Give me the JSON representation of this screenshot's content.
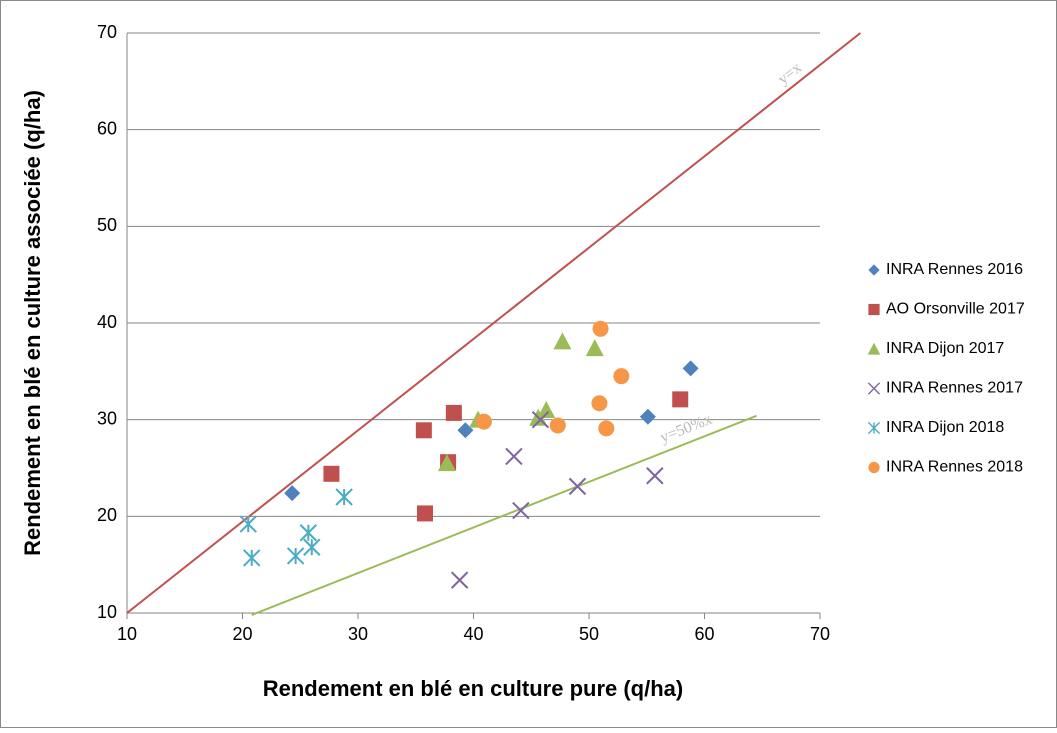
{
  "chart_data": {
    "type": "scatter",
    "xlabel": "Rendement en blé en culture pure (q/ha)",
    "ylabel": "Rendement en blé en culture associée (q/ha)",
    "xlim": [
      10,
      70
    ],
    "xticks": [
      10,
      20,
      30,
      40,
      50,
      60,
      70
    ],
    "ylim": [
      10,
      70
    ],
    "yticks": [
      10,
      20,
      30,
      40,
      50,
      60,
      70
    ],
    "grid": true,
    "legend": "right",
    "series": [
      {
        "name": "INRA Rennes 2016",
        "color": "#4f81bd",
        "marker": "diamond",
        "x": [
          24.3,
          39.3,
          55.1,
          58.8
        ],
        "values": [
          22.4,
          28.9,
          30.3,
          35.3
        ]
      },
      {
        "name": "AO Orsonville 2017",
        "color": "#c0504d",
        "marker": "square",
        "x": [
          27.7,
          35.7,
          38.3,
          37.8,
          35.8,
          57.9
        ],
        "values": [
          24.4,
          28.9,
          30.7,
          25.6,
          20.3,
          32.1
        ]
      },
      {
        "name": "INRA Dijon 2017",
        "color": "#9bbb59",
        "marker": "triangle",
        "x": [
          37.7,
          40.4,
          45.6,
          46.3,
          47.7,
          50.5
        ],
        "values": [
          25.5,
          30.0,
          30.2,
          31.0,
          38.1,
          37.4
        ]
      },
      {
        "name": "INRA Rennes 2017",
        "color": "#8064a2",
        "marker": "x",
        "x": [
          38.8,
          43.5,
          44.1,
          45.8,
          49.0,
          55.7
        ],
        "values": [
          13.4,
          26.2,
          20.6,
          30.0,
          23.1,
          24.2
        ]
      },
      {
        "name": "INRA Dijon 2018",
        "color": "#4bacc6",
        "marker": "star",
        "x": [
          20.5,
          20.8,
          24.6,
          25.7,
          26.0,
          28.8
        ],
        "values": [
          19.2,
          15.7,
          15.9,
          18.3,
          16.8,
          22.0
        ]
      },
      {
        "name": "INRA Rennes 2018",
        "color": "#f79646",
        "marker": "circle",
        "x": [
          40.9,
          47.3,
          51.0,
          50.9,
          51.5,
          52.8
        ],
        "values": [
          29.8,
          29.4,
          39.4,
          31.7,
          29.1,
          34.5
        ]
      }
    ],
    "lines": [
      {
        "label": "y=x",
        "color": "#c0504d",
        "x": [
          10,
          73.5
        ],
        "y": [
          10,
          70
        ]
      },
      {
        "label": "y=50%x",
        "color": "#9bbb59",
        "x": [
          20.8,
          64.5
        ],
        "y": [
          9.8,
          30.4
        ]
      }
    ]
  }
}
